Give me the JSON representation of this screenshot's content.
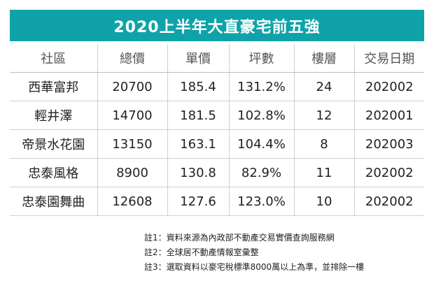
{
  "title": "2020上半年大直豪宅前五強",
  "columns": [
    "社區",
    "總價",
    "單價",
    "坪數",
    "樓層",
    "交易日期"
  ],
  "rows": [
    [
      "西華富邦",
      "20700",
      "185.4",
      "131.2%",
      "24",
      "202002"
    ],
    [
      "輕井澤",
      "14700",
      "181.5",
      "102.8%",
      "12",
      "202001"
    ],
    [
      "帝景水花園",
      "13150",
      "163.1",
      "104.4%",
      "8",
      "202003"
    ],
    [
      "忠泰風格",
      "8900",
      "130.8",
      "82.9%",
      "11",
      "202002"
    ],
    [
      "忠泰園舞曲",
      "12608",
      "127.6",
      "123.0%",
      "10",
      "202002"
    ]
  ],
  "notes": [
    "註1：資料來源為內政部不動產交易實價查詢服務網",
    "註2：全球居不動產情報室彙整",
    "註3：選取資料以豪宅稅標準8000萬以上為準，並排除一樓"
  ],
  "colors": {
    "title_bar": "#0fa3a9",
    "title_text": "#ffffff"
  }
}
